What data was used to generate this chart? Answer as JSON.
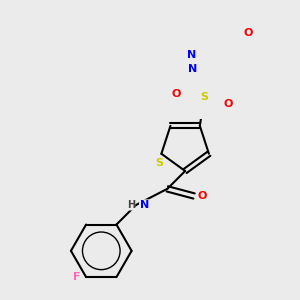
{
  "background_color": "#ebebeb",
  "atom_colors": {
    "C": "#000000",
    "H": "#555555",
    "N": "#0000ff",
    "O": "#ff0000",
    "S": "#cccc00",
    "F": "#ff69b4"
  },
  "bond_color": "#000000",
  "bond_lw": 1.5,
  "font_size": 8.0
}
